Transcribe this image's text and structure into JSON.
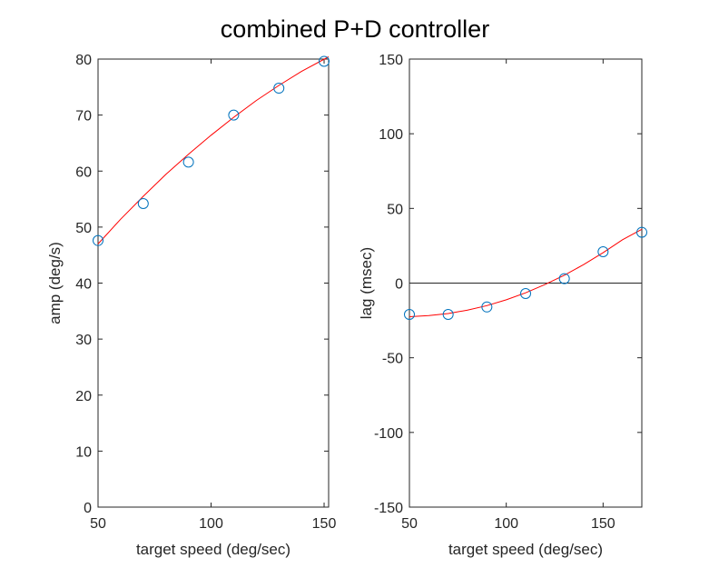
{
  "title": "combined P+D controller",
  "chart_data": [
    {
      "type": "scatter",
      "xlabel": "target speed (deg/sec)",
      "ylabel": "amp (deg/s)",
      "xlim": [
        50,
        152
      ],
      "ylim": [
        0,
        80
      ],
      "xticks": [
        50,
        100,
        150
      ],
      "yticks": [
        0,
        10,
        20,
        30,
        40,
        50,
        60,
        70,
        80
      ],
      "grid": false,
      "series": [
        {
          "kind": "markers",
          "marker": "circle",
          "color": "#0072BD",
          "x": [
            50,
            70,
            90,
            110,
            130,
            150
          ],
          "y": [
            47.6,
            54.2,
            61.6,
            70.0,
            74.8,
            79.6
          ]
        },
        {
          "kind": "fit-line",
          "color": "#FF0000",
          "x": [
            50,
            60,
            70,
            80,
            90,
            100,
            110,
            120,
            130,
            140,
            152
          ],
          "y": [
            47.0,
            51.4,
            55.5,
            59.4,
            63.0,
            66.4,
            69.6,
            72.6,
            75.3,
            77.8,
            80.4
          ]
        }
      ]
    },
    {
      "type": "scatter",
      "xlabel": "target speed (deg/sec)",
      "ylabel": "lag (msec)",
      "xlim": [
        50,
        170
      ],
      "ylim": [
        -150,
        150
      ],
      "xticks": [
        50,
        100,
        150
      ],
      "yticks": [
        -150,
        -100,
        -50,
        0,
        50,
        100,
        150
      ],
      "grid": false,
      "reference_line_y": 0,
      "series": [
        {
          "kind": "markers",
          "marker": "circle",
          "color": "#0072BD",
          "x": [
            50,
            70,
            90,
            110,
            130,
            150,
            170
          ],
          "y": [
            -21,
            -21,
            -16,
            -7,
            3,
            21,
            34
          ]
        },
        {
          "kind": "fit-line",
          "color": "#FF0000",
          "x": [
            50,
            60,
            70,
            80,
            90,
            100,
            110,
            120,
            130,
            140,
            150,
            160,
            170
          ],
          "y": [
            -22.5,
            -21.8,
            -20.4,
            -18.1,
            -15.1,
            -11.2,
            -6.5,
            -1.0,
            5.3,
            12.4,
            20.3,
            29.0,
            36.0
          ]
        }
      ]
    }
  ]
}
